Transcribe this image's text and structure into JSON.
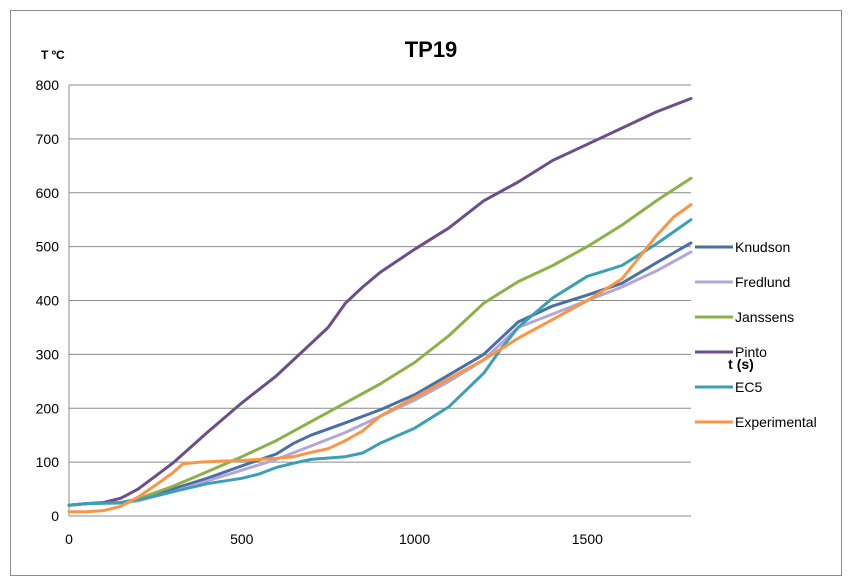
{
  "chart_data": {
    "type": "line",
    "title": "TP19",
    "ylabel": "T ºC",
    "xlabel": "t (s)",
    "xlim": [
      0,
      1800
    ],
    "ylim": [
      0,
      800
    ],
    "x_ticks": [
      0,
      500,
      1000,
      1500
    ],
    "y_ticks": [
      0,
      100,
      200,
      300,
      400,
      500,
      600,
      700,
      800
    ],
    "grid": "horizontal",
    "legend_position": "right",
    "series": [
      {
        "name": "Knudson",
        "color": "#4a6fa5",
        "points": [
          [
            0,
            20
          ],
          [
            50,
            23
          ],
          [
            100,
            24
          ],
          [
            150,
            24
          ],
          [
            200,
            30
          ],
          [
            300,
            50
          ],
          [
            400,
            70
          ],
          [
            500,
            93
          ],
          [
            600,
            115
          ],
          [
            650,
            135
          ],
          [
            700,
            150
          ],
          [
            800,
            173
          ],
          [
            900,
            197
          ],
          [
            1000,
            225
          ],
          [
            1100,
            262
          ],
          [
            1200,
            300
          ],
          [
            1250,
            330
          ],
          [
            1300,
            360
          ],
          [
            1400,
            390
          ],
          [
            1500,
            410
          ],
          [
            1600,
            432
          ],
          [
            1700,
            470
          ],
          [
            1800,
            507
          ]
        ]
      },
      {
        "name": "Fredlund",
        "color": "#b4a7d6",
        "points": [
          [
            0,
            20
          ],
          [
            50,
            23
          ],
          [
            100,
            24
          ],
          [
            150,
            24
          ],
          [
            200,
            28
          ],
          [
            300,
            45
          ],
          [
            400,
            65
          ],
          [
            500,
            85
          ],
          [
            600,
            105
          ],
          [
            700,
            130
          ],
          [
            800,
            155
          ],
          [
            900,
            185
          ],
          [
            1000,
            215
          ],
          [
            1100,
            250
          ],
          [
            1200,
            290
          ],
          [
            1250,
            320
          ],
          [
            1300,
            350
          ],
          [
            1400,
            375
          ],
          [
            1500,
            400
          ],
          [
            1600,
            425
          ],
          [
            1700,
            455
          ],
          [
            1800,
            490
          ]
        ]
      },
      {
        "name": "Janssens",
        "color": "#8db04a",
        "points": [
          [
            0,
            20
          ],
          [
            50,
            23
          ],
          [
            100,
            24
          ],
          [
            150,
            25
          ],
          [
            200,
            32
          ],
          [
            300,
            55
          ],
          [
            400,
            82
          ],
          [
            500,
            110
          ],
          [
            600,
            140
          ],
          [
            700,
            175
          ],
          [
            800,
            210
          ],
          [
            900,
            245
          ],
          [
            1000,
            285
          ],
          [
            1100,
            335
          ],
          [
            1200,
            395
          ],
          [
            1250,
            415
          ],
          [
            1300,
            435
          ],
          [
            1400,
            465
          ],
          [
            1500,
            500
          ],
          [
            1600,
            540
          ],
          [
            1700,
            585
          ],
          [
            1800,
            627
          ]
        ]
      },
      {
        "name": "Pinto",
        "color": "#6b4f8c",
        "points": [
          [
            0,
            20
          ],
          [
            50,
            23
          ],
          [
            100,
            25
          ],
          [
            150,
            33
          ],
          [
            200,
            50
          ],
          [
            300,
            98
          ],
          [
            400,
            155
          ],
          [
            500,
            210
          ],
          [
            600,
            260
          ],
          [
            700,
            320
          ],
          [
            750,
            350
          ],
          [
            800,
            395
          ],
          [
            850,
            425
          ],
          [
            900,
            452
          ],
          [
            1000,
            495
          ],
          [
            1100,
            535
          ],
          [
            1200,
            585
          ],
          [
            1300,
            620
          ],
          [
            1400,
            660
          ],
          [
            1500,
            690
          ],
          [
            1600,
            720
          ],
          [
            1700,
            750
          ],
          [
            1800,
            775
          ]
        ]
      },
      {
        "name": "EC5",
        "color": "#3ba0b5",
        "points": [
          [
            0,
            20
          ],
          [
            50,
            23
          ],
          [
            100,
            24
          ],
          [
            150,
            25
          ],
          [
            200,
            30
          ],
          [
            300,
            45
          ],
          [
            400,
            60
          ],
          [
            500,
            70
          ],
          [
            550,
            78
          ],
          [
            600,
            90
          ],
          [
            650,
            98
          ],
          [
            700,
            105
          ],
          [
            800,
            110
          ],
          [
            850,
            117
          ],
          [
            900,
            135
          ],
          [
            1000,
            163
          ],
          [
            1100,
            203
          ],
          [
            1200,
            265
          ],
          [
            1250,
            310
          ],
          [
            1300,
            350
          ],
          [
            1400,
            405
          ],
          [
            1500,
            445
          ],
          [
            1550,
            455
          ],
          [
            1600,
            465
          ],
          [
            1700,
            505
          ],
          [
            1800,
            550
          ]
        ]
      },
      {
        "name": "Experimental",
        "color": "#f79646",
        "points": [
          [
            0,
            8
          ],
          [
            50,
            8
          ],
          [
            100,
            10
          ],
          [
            150,
            18
          ],
          [
            200,
            35
          ],
          [
            250,
            57
          ],
          [
            300,
            80
          ],
          [
            330,
            97
          ],
          [
            380,
            100
          ],
          [
            450,
            102
          ],
          [
            500,
            103
          ],
          [
            550,
            105
          ],
          [
            600,
            107
          ],
          [
            650,
            110
          ],
          [
            700,
            118
          ],
          [
            750,
            125
          ],
          [
            800,
            140
          ],
          [
            850,
            158
          ],
          [
            900,
            185
          ],
          [
            1000,
            220
          ],
          [
            1100,
            255
          ],
          [
            1200,
            290
          ],
          [
            1300,
            330
          ],
          [
            1400,
            365
          ],
          [
            1500,
            400
          ],
          [
            1550,
            420
          ],
          [
            1600,
            440
          ],
          [
            1650,
            480
          ],
          [
            1700,
            520
          ],
          [
            1750,
            555
          ],
          [
            1800,
            578
          ]
        ]
      }
    ]
  }
}
